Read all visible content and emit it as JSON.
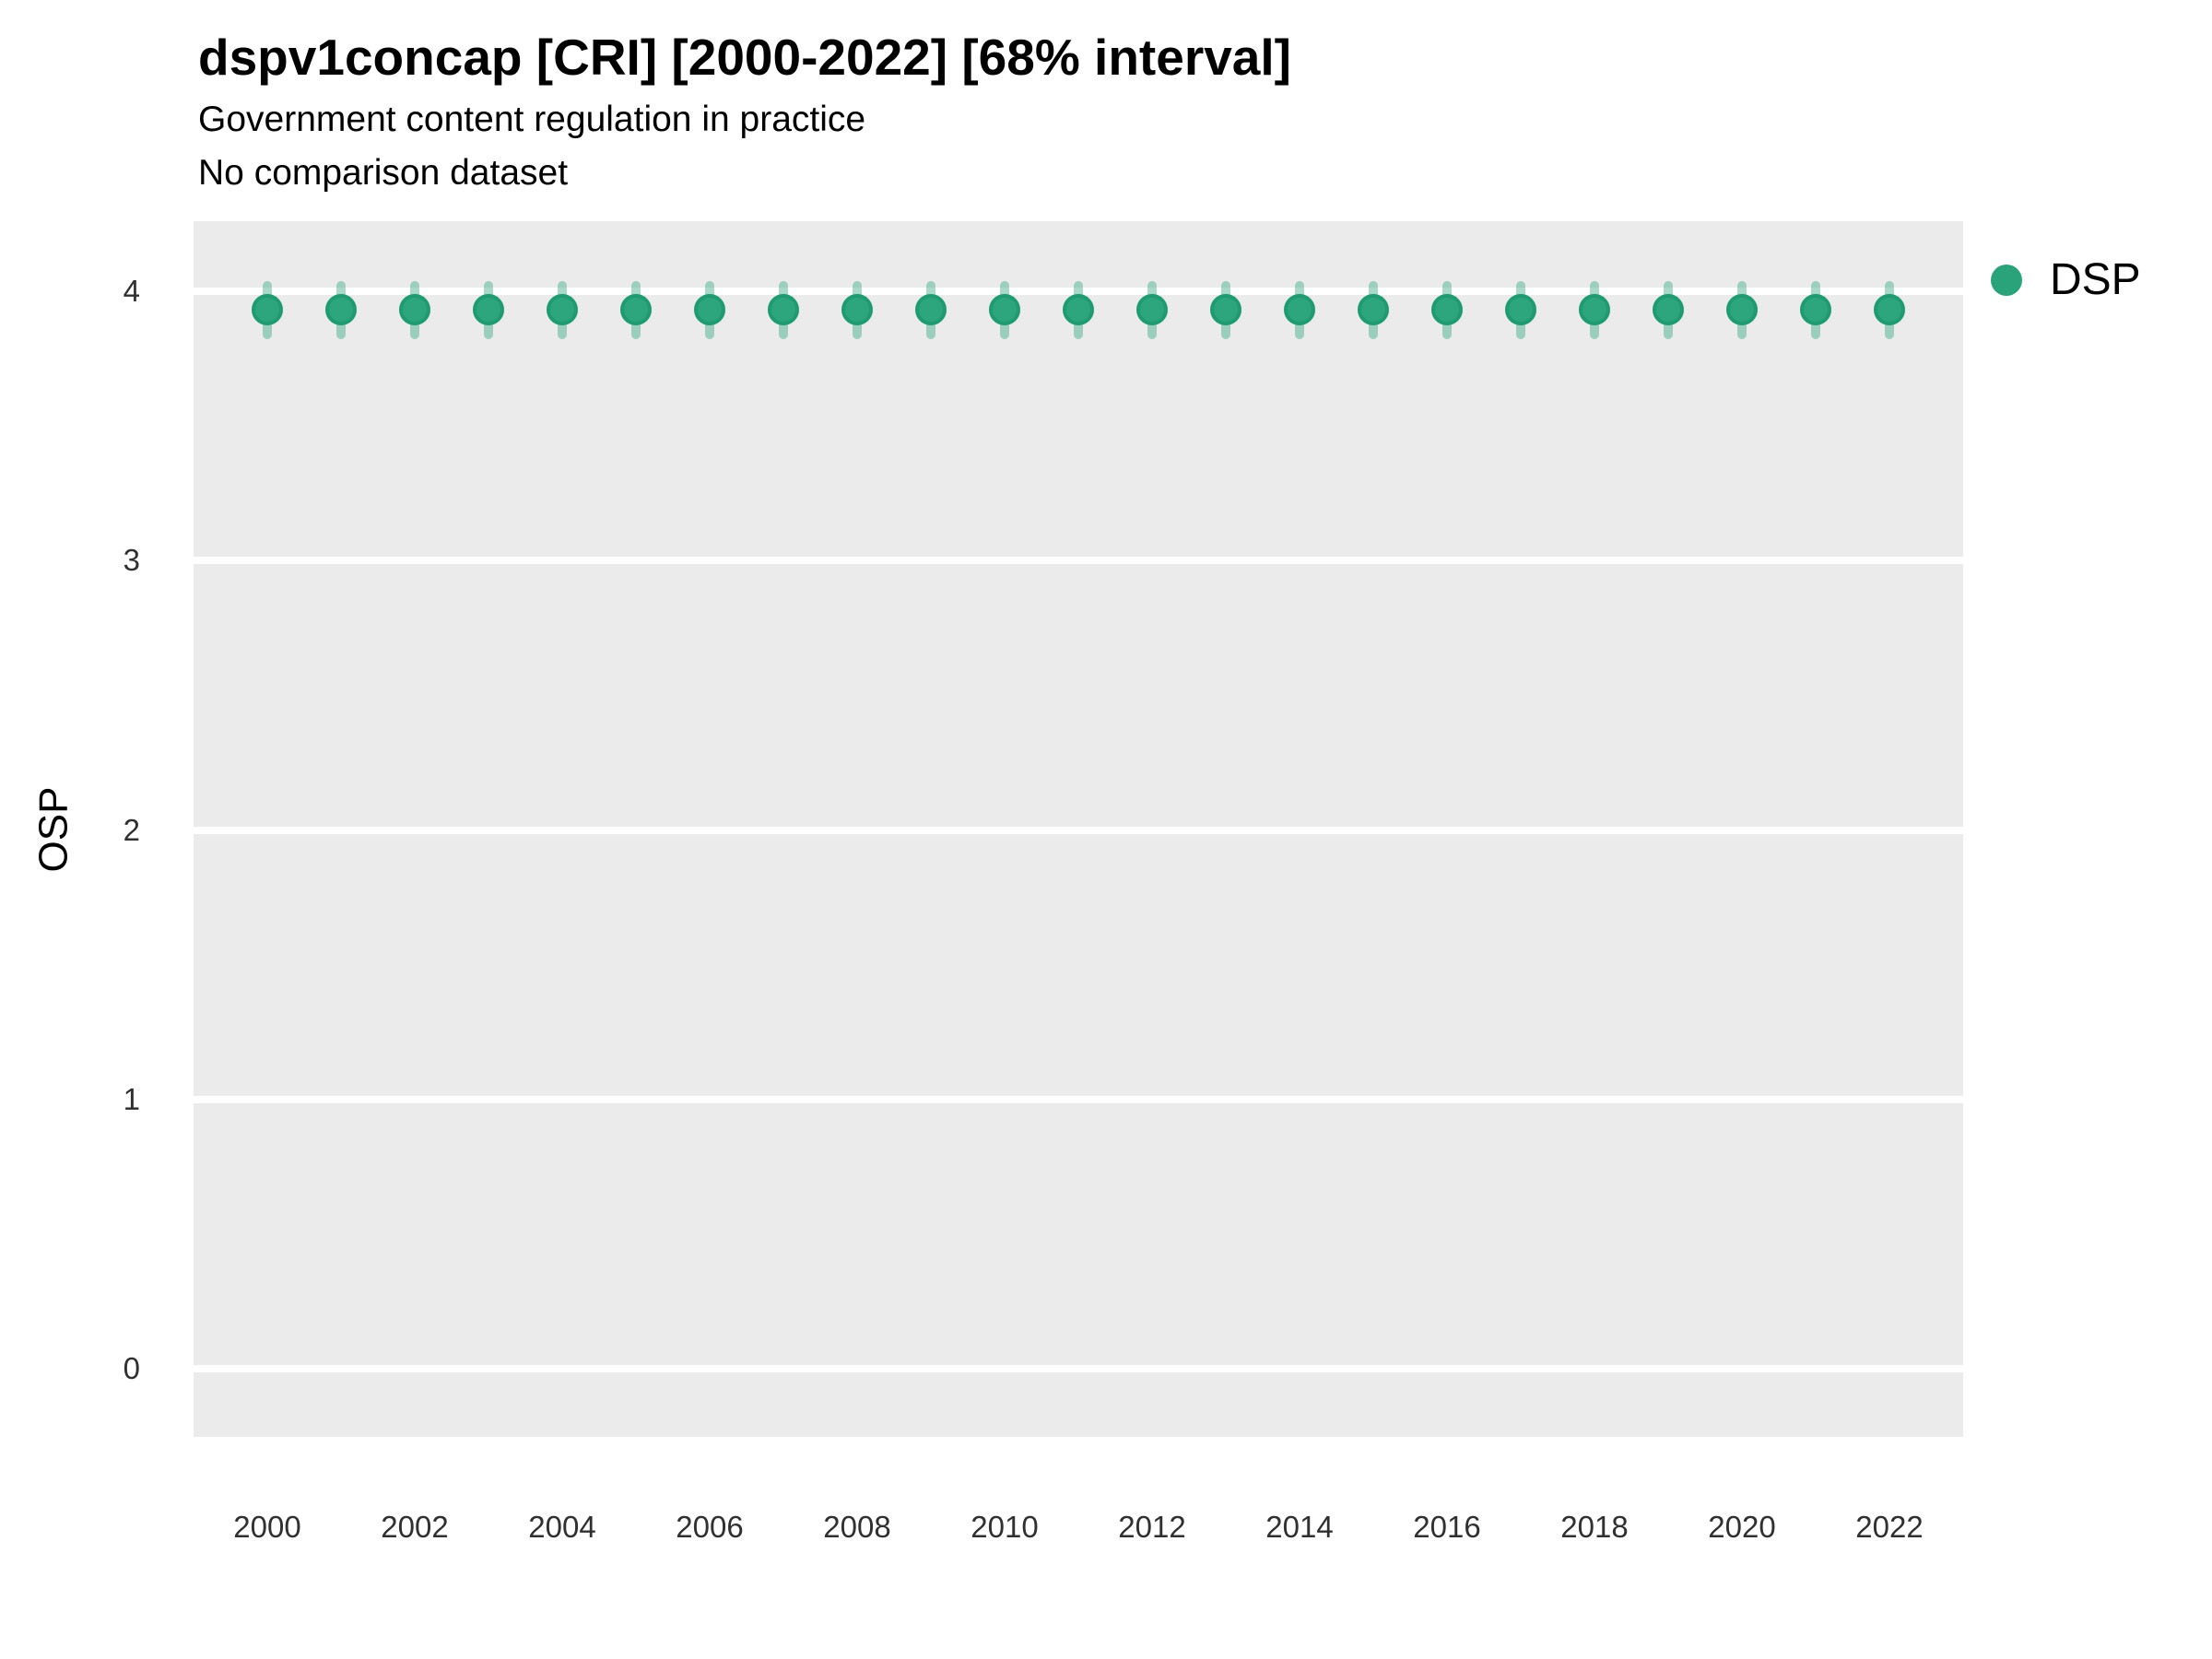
{
  "header": {
    "title": "dspv1concap [CRI] [2000-2022] [68% interval]",
    "subtitle": "Government content regulation in practice",
    "note": "No comparison dataset"
  },
  "legend": {
    "items": [
      {
        "label": "DSP",
        "color": "#2AA37A"
      }
    ],
    "position": "right-top"
  },
  "colors": {
    "panel_background": "#EBEBEB",
    "gridline": "#FFFFFF",
    "point_fill": "#2EA67D",
    "point_stroke": "#1E9B70",
    "errorbar": "rgba(46,166,125,0.42)",
    "tick_text": "#303030",
    "title_text": "#000000"
  },
  "chart_data": {
    "type": "scatter",
    "title": "dspv1concap [CRI] [2000-2022] [68% interval]",
    "subtitle": "Government content regulation in practice",
    "note": "No comparison dataset",
    "interval": "68% interval",
    "xlabel": "",
    "ylabel": "OSP",
    "x": [
      2000,
      2001,
      2002,
      2003,
      2004,
      2005,
      2006,
      2007,
      2008,
      2009,
      2010,
      2011,
      2012,
      2013,
      2014,
      2015,
      2016,
      2017,
      2018,
      2019,
      2020,
      2021,
      2022
    ],
    "series": [
      {
        "name": "DSP",
        "values": [
          3.93,
          3.93,
          3.93,
          3.93,
          3.93,
          3.93,
          3.93,
          3.93,
          3.93,
          3.93,
          3.93,
          3.93,
          3.93,
          3.93,
          3.93,
          3.93,
          3.93,
          3.93,
          3.93,
          3.93,
          3.93,
          3.93,
          3.93
        ],
        "interval_low": [
          3.84,
          3.84,
          3.84,
          3.84,
          3.84,
          3.84,
          3.84,
          3.84,
          3.84,
          3.84,
          3.84,
          3.84,
          3.84,
          3.84,
          3.84,
          3.84,
          3.84,
          3.84,
          3.84,
          3.84,
          3.84,
          3.84,
          3.84
        ],
        "interval_high": [
          4.02,
          4.02,
          4.02,
          4.02,
          4.02,
          4.02,
          4.02,
          4.02,
          4.02,
          4.02,
          4.02,
          4.02,
          4.02,
          4.02,
          4.02,
          4.02,
          4.02,
          4.02,
          4.02,
          4.02,
          4.02,
          4.02,
          4.02
        ]
      }
    ],
    "yticks": [
      0,
      1,
      2,
      3,
      4
    ],
    "xticks": [
      2000,
      2002,
      2004,
      2006,
      2008,
      2010,
      2012,
      2014,
      2016,
      2018,
      2020,
      2022
    ],
    "ylim": [
      -0.253,
      4.26
    ],
    "xlim": [
      1999,
      2023
    ],
    "grid": "horizontal-major-only",
    "legend_position": "right-top"
  }
}
